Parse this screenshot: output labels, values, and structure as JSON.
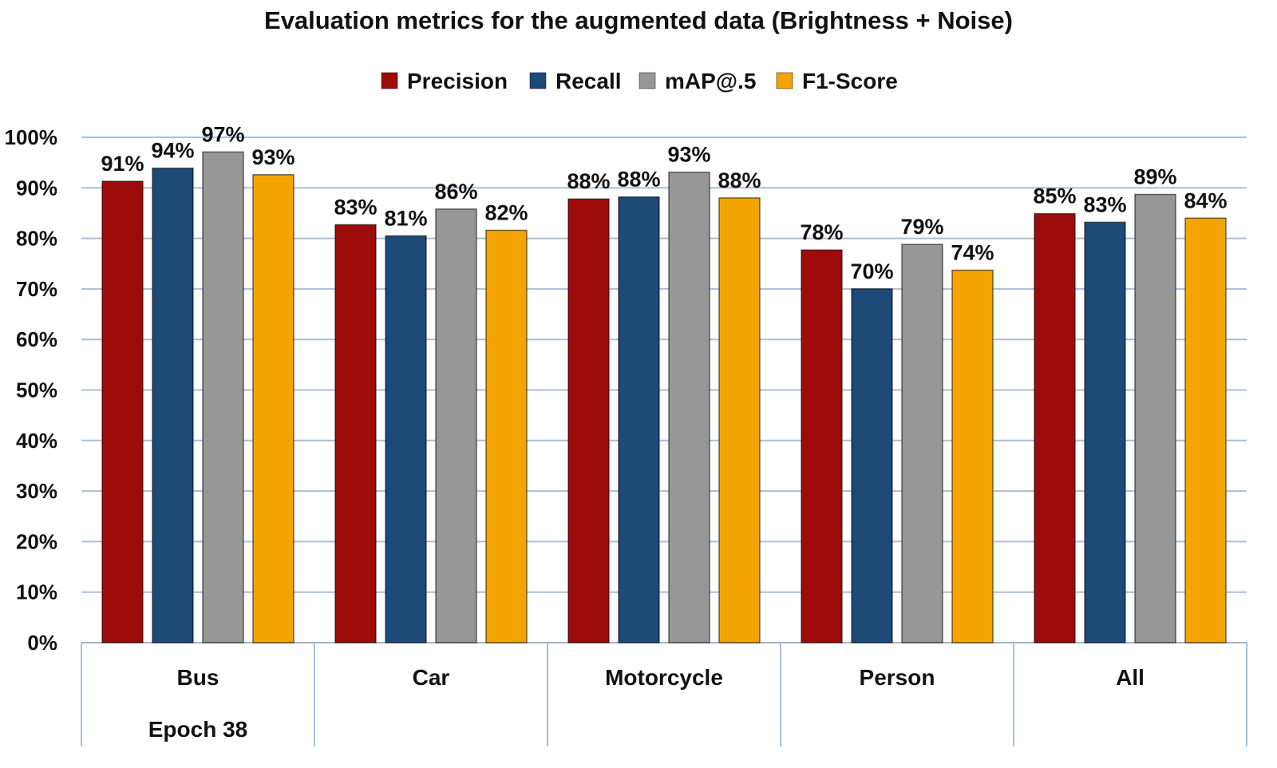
{
  "chart_data": {
    "type": "bar",
    "title": "Evaluation metrics for the augmented data (Brightness + Noise)",
    "categories": [
      "Bus",
      "Car",
      "Motorcycle",
      "Person",
      "All"
    ],
    "group_label": "Epoch 38",
    "series": [
      {
        "name": "Precision",
        "color": "#9e0b0b",
        "values": [
          91.3,
          82.7,
          87.8,
          77.7,
          84.9
        ],
        "labels": [
          "91%",
          "83%",
          "88%",
          "78%",
          "85%"
        ]
      },
      {
        "name": "Recall",
        "color": "#1e4a78",
        "values": [
          93.9,
          80.5,
          88.2,
          70.0,
          83.2
        ],
        "labels": [
          "94%",
          "81%",
          "88%",
          "70%",
          "83%"
        ]
      },
      {
        "name": "mAP@.5",
        "color": "#979797",
        "values": [
          97.1,
          85.8,
          93.1,
          78.8,
          88.7
        ],
        "labels": [
          "97%",
          "86%",
          "93%",
          "79%",
          "89%"
        ]
      },
      {
        "name": "F1-Score",
        "color": "#f3a400",
        "values": [
          92.6,
          81.6,
          88.0,
          73.7,
          84.0
        ],
        "labels": [
          "93%",
          "82%",
          "88%",
          "74%",
          "84%"
        ]
      }
    ],
    "ylim": [
      0,
      100
    ],
    "y_ticks": [
      "0%",
      "10%",
      "20%",
      "30%",
      "40%",
      "50%",
      "60%",
      "70%",
      "80%",
      "90%",
      "100%"
    ],
    "xlabel": "",
    "ylabel": "",
    "grid": true,
    "legend_position": "top-center"
  }
}
